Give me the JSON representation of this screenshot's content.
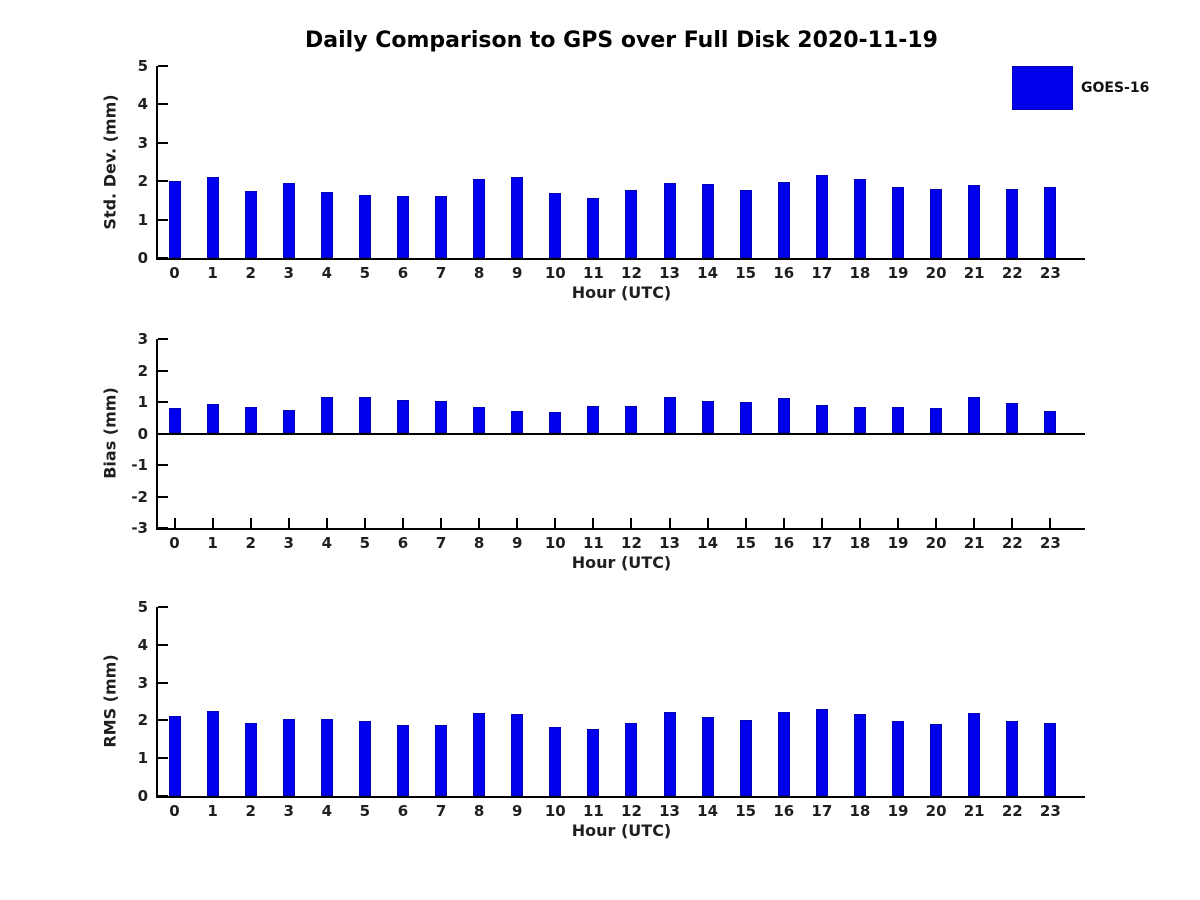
{
  "title": "Daily Comparison to GPS over Full Disk 2020-11-19",
  "legend": {
    "label": "GOES-16",
    "color": "#0000EE",
    "position": "top-right"
  },
  "colors": {
    "bar_fill": "#0000EE",
    "bar_edge": "#0000B4",
    "axis": "#000000",
    "text": "#1F1F1F"
  },
  "chart_data": [
    {
      "type": "bar",
      "name": "std-dev",
      "ylabel": "Std. Dev. (mm)",
      "xlabel": "Hour (UTC)",
      "ylim": [
        0,
        5
      ],
      "yticks": [
        0,
        1,
        2,
        3,
        4,
        5
      ],
      "grid": false,
      "categories": [
        "0",
        "1",
        "2",
        "3",
        "4",
        "5",
        "6",
        "7",
        "8",
        "9",
        "10",
        "11",
        "12",
        "13",
        "14",
        "15",
        "16",
        "17",
        "18",
        "19",
        "20",
        "21",
        "22",
        "23"
      ],
      "values": [
        2.0,
        2.1,
        1.75,
        1.95,
        1.72,
        1.65,
        1.62,
        1.62,
        2.07,
        2.1,
        1.7,
        1.57,
        1.77,
        1.95,
        1.93,
        1.77,
        1.98,
        2.15,
        2.07,
        1.86,
        1.8,
        1.91,
        1.79,
        1.86
      ]
    },
    {
      "type": "bar",
      "name": "bias",
      "ylabel": "Bias (mm)",
      "xlabel": "Hour (UTC)",
      "ylim": [
        -3,
        3
      ],
      "yticks": [
        -3,
        -2,
        -1,
        0,
        1,
        2,
        3
      ],
      "zero_line": true,
      "grid": false,
      "categories": [
        "0",
        "1",
        "2",
        "3",
        "4",
        "5",
        "6",
        "7",
        "8",
        "9",
        "10",
        "11",
        "12",
        "13",
        "14",
        "15",
        "16",
        "17",
        "18",
        "19",
        "20",
        "21",
        "22",
        "23"
      ],
      "values": [
        0.8,
        0.95,
        0.85,
        0.76,
        1.15,
        1.15,
        1.07,
        1.04,
        0.85,
        0.73,
        0.69,
        0.88,
        0.87,
        1.15,
        1.02,
        1.0,
        1.12,
        0.9,
        0.84,
        0.84,
        0.81,
        1.15,
        0.97,
        0.72
      ]
    },
    {
      "type": "bar",
      "name": "rms",
      "ylabel": "RMS (mm)",
      "xlabel": "Hour (UTC)",
      "ylim": [
        0,
        5
      ],
      "yticks": [
        0,
        1,
        2,
        3,
        4,
        5
      ],
      "grid": false,
      "categories": [
        "0",
        "1",
        "2",
        "3",
        "4",
        "5",
        "6",
        "7",
        "8",
        "9",
        "10",
        "11",
        "12",
        "13",
        "14",
        "15",
        "16",
        "17",
        "18",
        "19",
        "20",
        "21",
        "22",
        "23"
      ],
      "values": [
        2.12,
        2.25,
        1.92,
        2.04,
        2.04,
        1.99,
        1.89,
        1.89,
        2.2,
        2.18,
        1.82,
        1.77,
        1.93,
        2.21,
        2.1,
        2.01,
        2.23,
        2.29,
        2.16,
        1.98,
        1.9,
        2.19,
        1.98,
        1.93
      ]
    }
  ]
}
